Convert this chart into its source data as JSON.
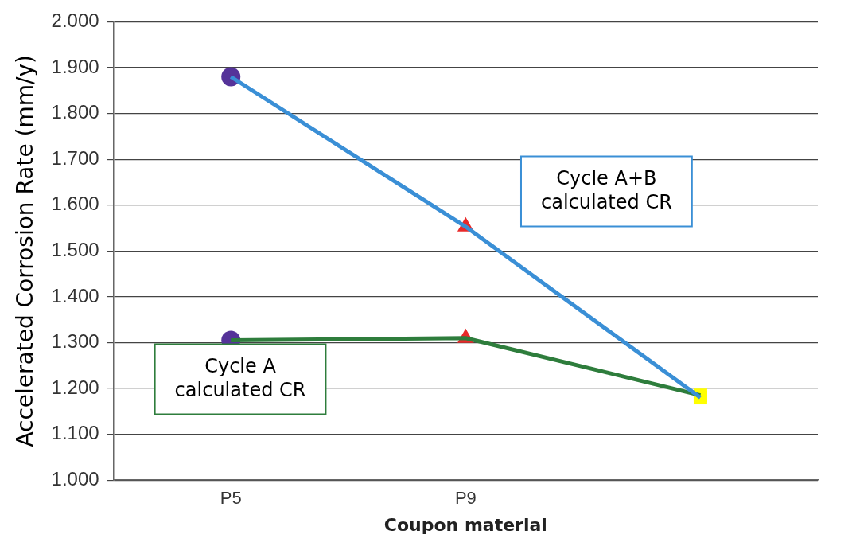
{
  "chart_data": {
    "type": "line",
    "xlabel": "Coupon material",
    "ylabel": "Accelerated Corrosion Rate (mm/y)",
    "categories": [
      "P5",
      "P9",
      null
    ],
    "marker": [
      "circle",
      "triangle",
      "square"
    ],
    "series": [
      {
        "name": "Cycle A+B\ncalculated CR",
        "color": "#3a8fd6",
        "colors": [
          "#553399",
          "#e82a2a",
          "#ffff00"
        ],
        "values": [
          1.88,
          1.553,
          1.18
        ]
      },
      {
        "name": "Cycle A\ncalculated CR",
        "color": "#2e7d3c",
        "colors": [
          "#553399",
          "#e82a2a",
          "#ffff00"
        ],
        "values": [
          1.305,
          1.31,
          1.185
        ]
      }
    ],
    "ylim": [
      1,
      2
    ],
    "yticks": [
      {
        "value": 1,
        "label": "1.000"
      },
      {
        "value": 1.1,
        "label": "1.100"
      },
      {
        "value": 1.2,
        "label": "1.200"
      },
      {
        "value": 1.3,
        "label": "1.300"
      },
      {
        "value": 1.4,
        "label": "1.400"
      },
      {
        "value": 1.5,
        "label": "1.500"
      },
      {
        "value": 1.6,
        "label": "1.600"
      },
      {
        "value": 1.7,
        "label": "1.700"
      },
      {
        "value": 1.8,
        "label": "1.800"
      },
      {
        "value": 1.9,
        "label": "1.900"
      },
      {
        "value": 2,
        "label": "2.000"
      }
    ],
    "grid": "y",
    "legend": false,
    "line_style": "solid"
  }
}
